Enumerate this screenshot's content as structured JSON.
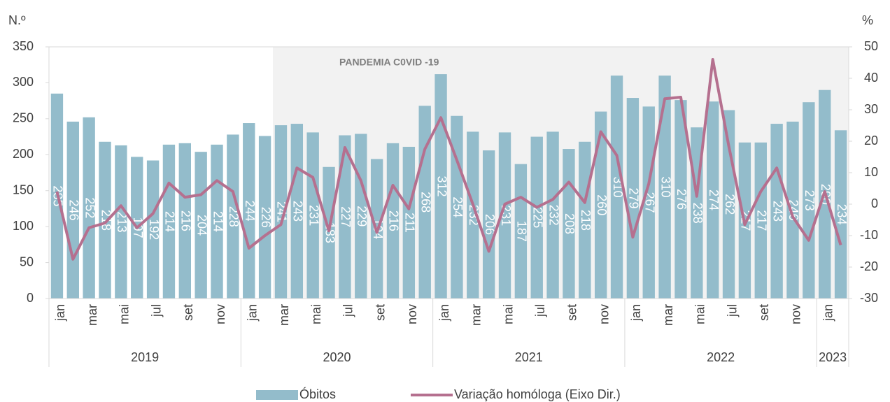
{
  "chart_data": {
    "type": "bar",
    "y_label": "N.º",
    "y2_label": "%",
    "annotation": "PANDEMIA C0VID -19",
    "categories": [
      "jan",
      null,
      "mar",
      null,
      "mai",
      null,
      "jul",
      null,
      "set",
      null,
      "nov",
      null,
      "jan",
      null,
      "mar",
      null,
      "mai",
      null,
      "jul",
      null,
      "set",
      null,
      "nov",
      null,
      "jan",
      null,
      "mar",
      null,
      "mai",
      null,
      "jul",
      null,
      "set",
      null,
      "nov",
      null,
      "jan",
      null,
      "mar",
      null,
      "mai",
      null,
      "jul",
      null,
      "set",
      null,
      "nov",
      null,
      "jan",
      null
    ],
    "years": [
      "2019",
      "2020",
      "2021",
      "2022",
      "2023"
    ],
    "series": [
      {
        "name": "Óbitos",
        "type": "bar",
        "color": "#93bccb",
        "values": [
          285,
          246,
          252,
          218,
          213,
          197,
          192,
          214,
          216,
          204,
          214,
          228,
          244,
          226,
          241,
          243,
          231,
          183,
          227,
          229,
          194,
          216,
          211,
          268,
          312,
          254,
          232,
          206,
          231,
          187,
          225,
          232,
          208,
          218,
          260,
          310,
          279,
          267,
          310,
          276,
          238,
          274,
          262,
          217,
          217,
          243,
          246,
          273,
          290,
          234
        ]
      },
      {
        "name": "Variação homóloga (Eixo Dir.)",
        "type": "line",
        "color": "#b5708f",
        "axis": "y2",
        "values": [
          4,
          -17.5,
          -7.5,
          -6,
          -0.5,
          -7.5,
          -3,
          6.7,
          2.2,
          3,
          7.5,
          4,
          -14,
          -10,
          -6.5,
          11.5,
          8.5,
          -8.5,
          18,
          7.5,
          -9,
          6,
          -1.5,
          17.5,
          27.5,
          14,
          0,
          -15,
          0,
          2.2,
          -1,
          1.5,
          7,
          0.5,
          23,
          15.5,
          -10.5,
          6.5,
          33.5,
          34,
          2.5,
          46,
          18.5,
          -6.5,
          4,
          11.5,
          -4,
          -11.5,
          4,
          -13
        ]
      }
    ],
    "ylim": [
      0,
      350
    ],
    "yticks": [
      0,
      50,
      100,
      150,
      200,
      250,
      300,
      350
    ],
    "y2lim": [
      -30,
      50
    ],
    "y2ticks": [
      -30,
      -20,
      -10,
      0,
      10,
      20,
      30,
      40,
      50
    ]
  }
}
